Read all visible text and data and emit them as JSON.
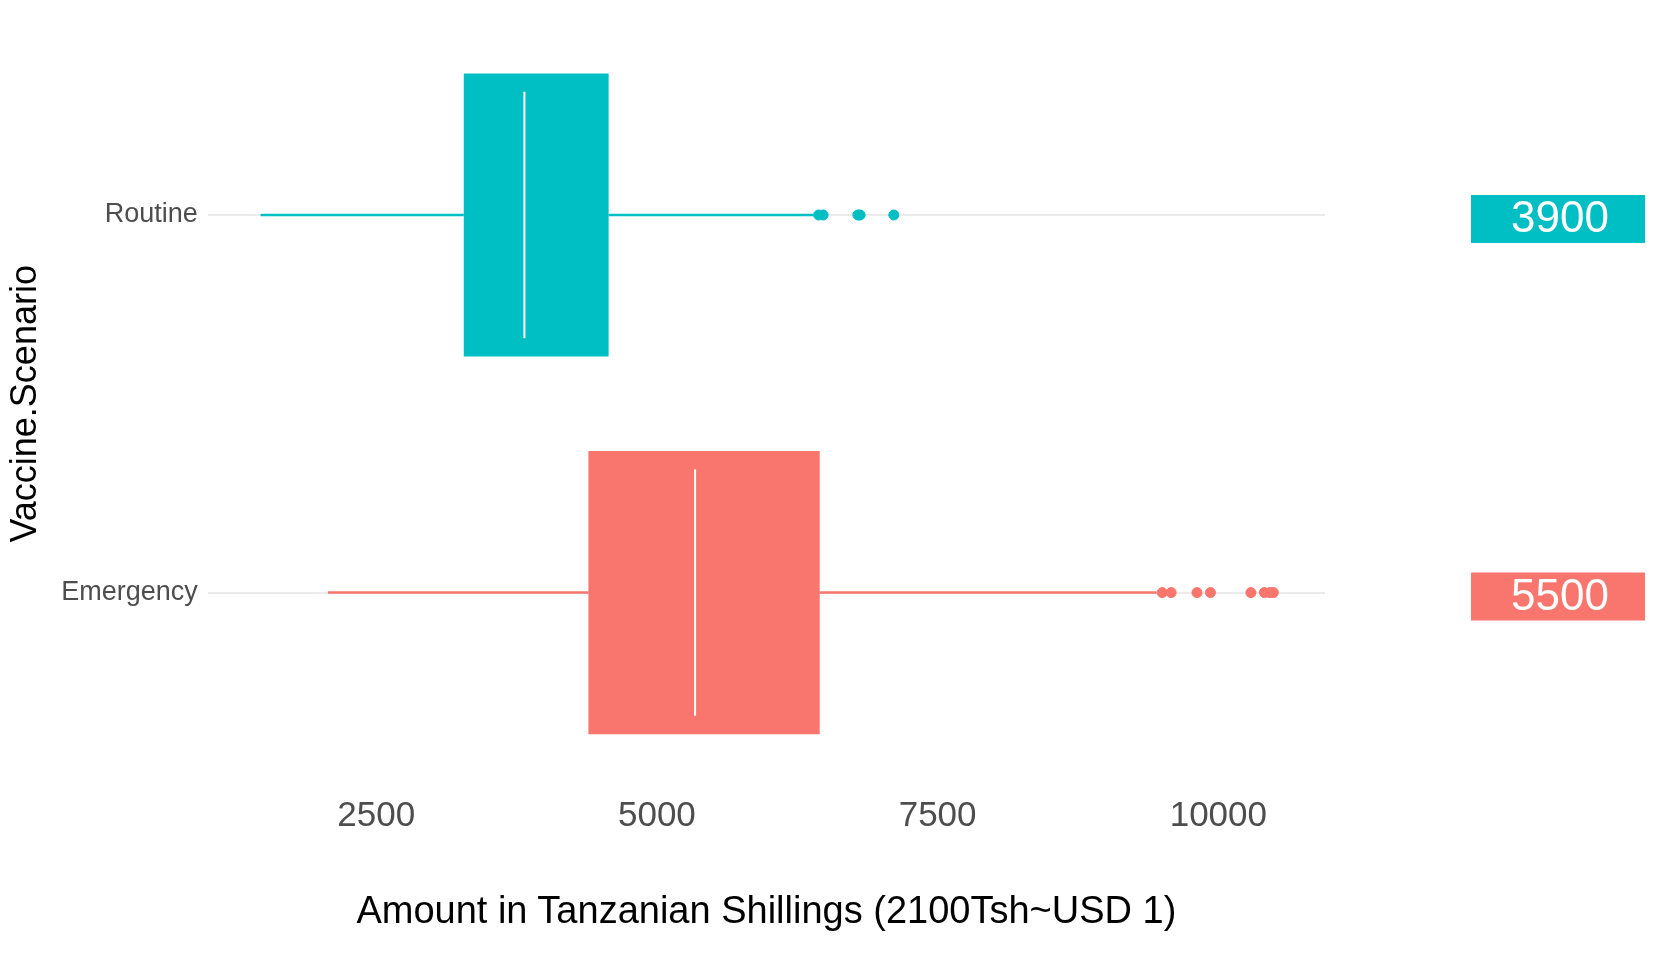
{
  "chart_data": {
    "type": "box",
    "orientation": "horizontal",
    "xlabel": "Amount in Tanzanian Shillings (2100Tsh~USD 1)",
    "ylabel": "Vaccine.Scenario",
    "categories": [
      "Routine",
      "Emergency"
    ],
    "colors": [
      "#00bfc4",
      "#f8766d"
    ],
    "boxes": [
      {
        "low": 1470,
        "q1": 3280,
        "median": 3820,
        "q3": 4570,
        "high": 6390,
        "outliers": [
          6440,
          6480,
          6790,
          6810,
          7110
        ]
      },
      {
        "low": 2070,
        "q1": 4390,
        "median": 5340,
        "q3": 6450,
        "high": 9450,
        "outliers": [
          9500,
          9580,
          9810,
          9930,
          10290,
          10410,
          10460,
          10490
        ]
      }
    ],
    "xlim": [
      1000,
      10950
    ],
    "xticks": [
      2500,
      5000,
      7500,
      10000
    ],
    "grid": "y",
    "legend": false,
    "annotations": [
      "3900",
      "5500"
    ]
  }
}
